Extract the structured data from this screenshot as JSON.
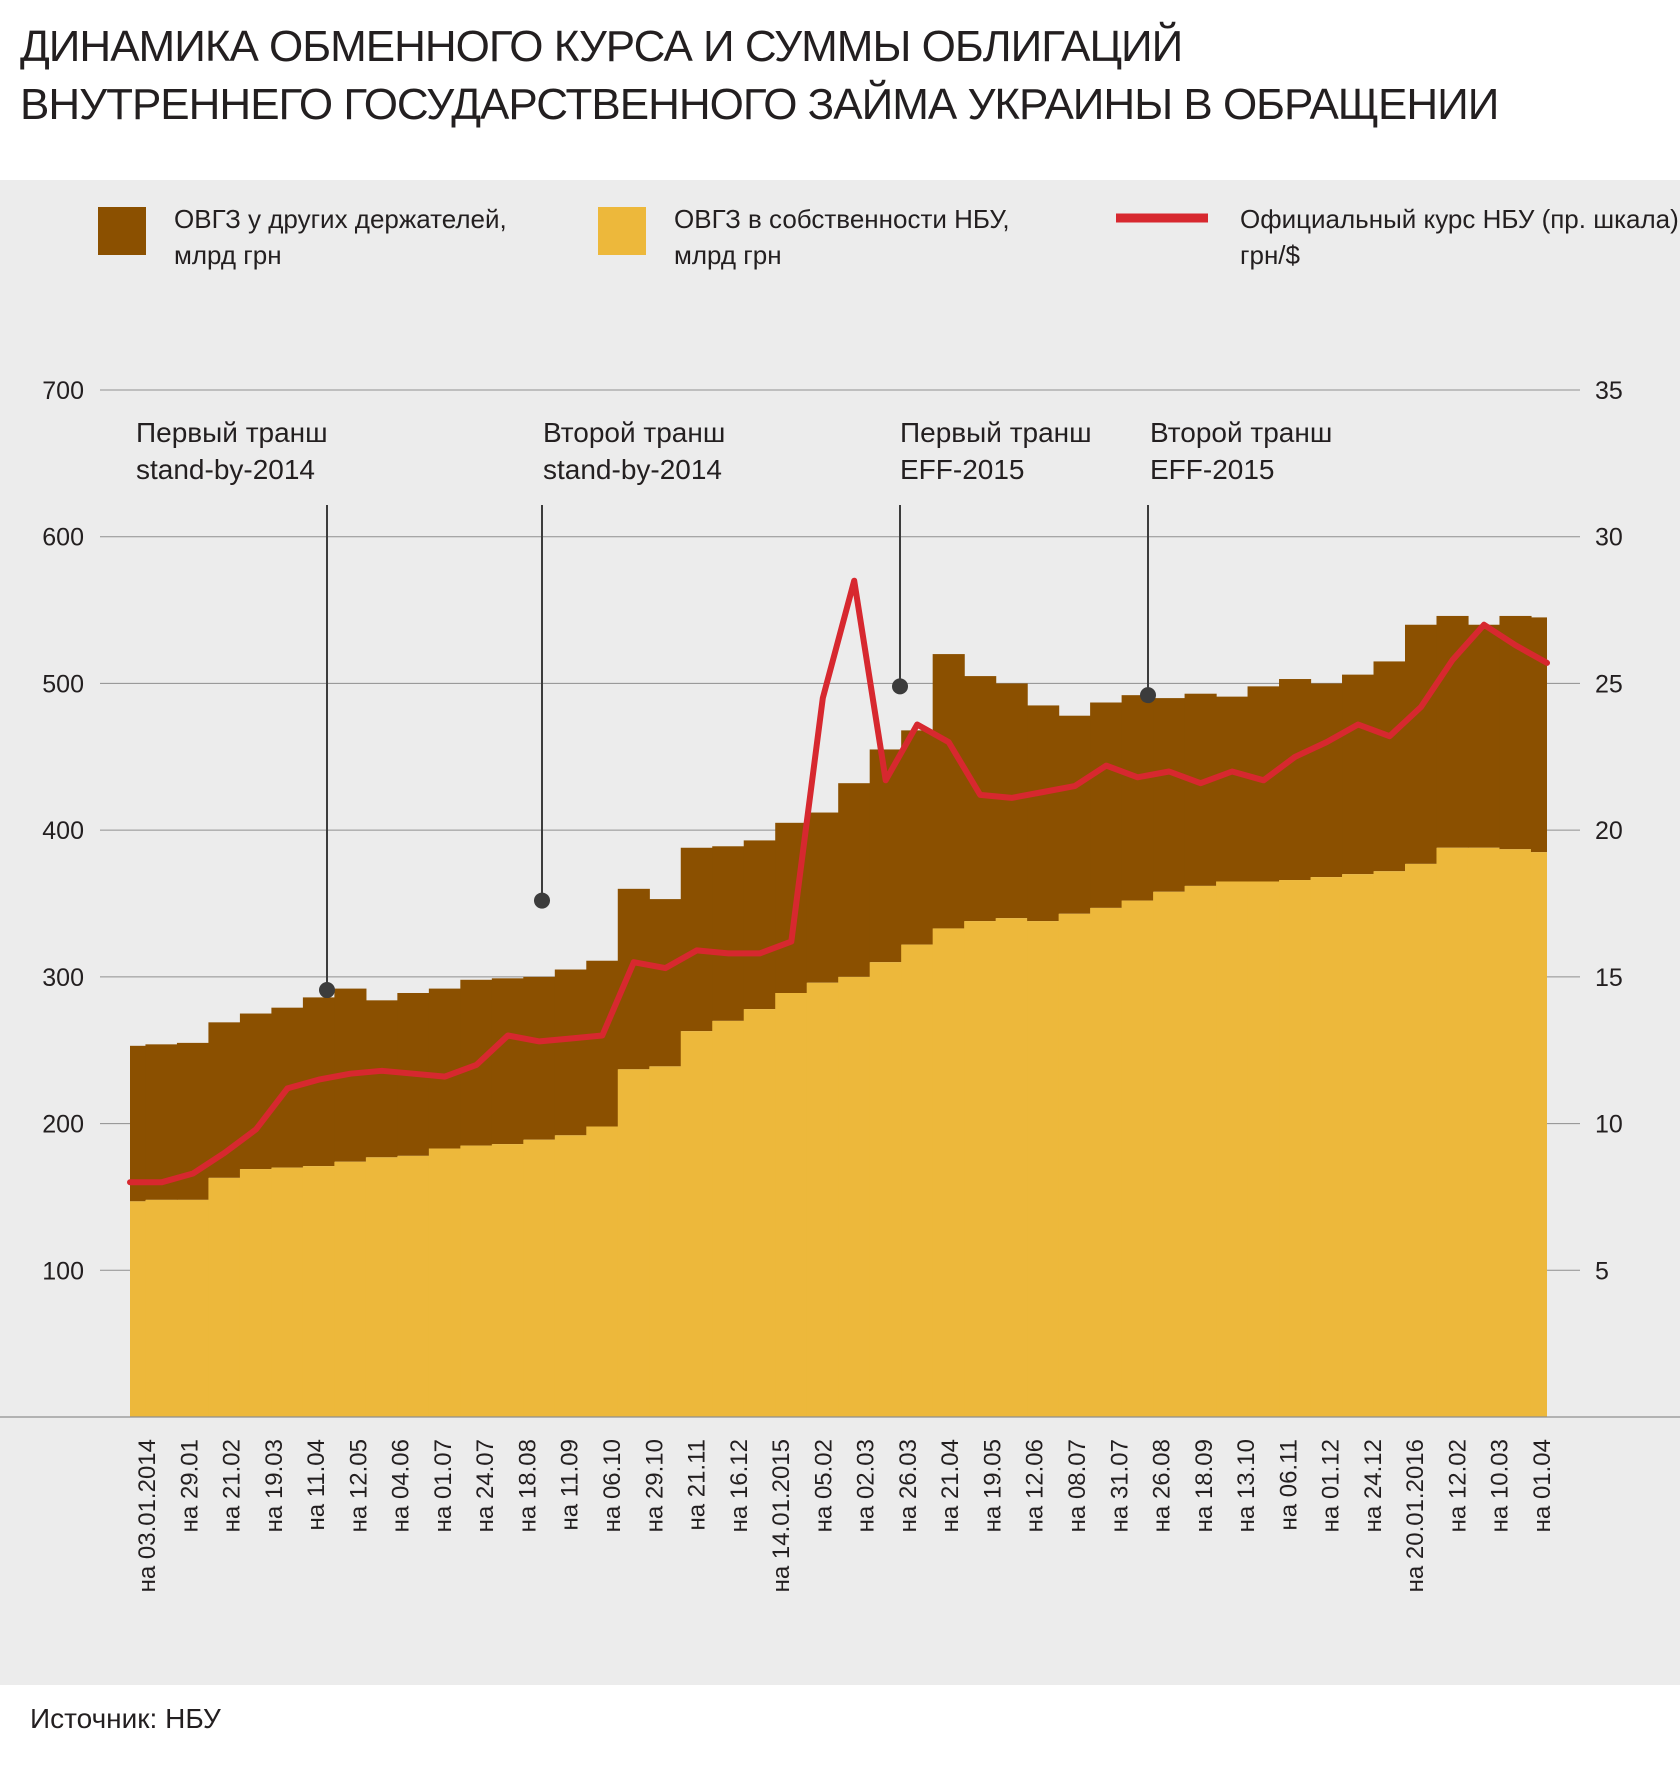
{
  "title_lines": [
    "ДИНАМИКА ОБМЕННОГО КУРСА И СУММЫ ОБЛИГАЦИЙ",
    "ВНУТРЕННЕГО ГОСУДАРСТВЕННОГО ЗАЙМА УКРАИНЫ В ОБРАЩЕНИИ"
  ],
  "source": "Источник: НБУ",
  "colors": {
    "other_holders": "#8b5000",
    "nbu_owned": "#edb83b",
    "rate_line": "#d7282f",
    "panel_bg": "#ececec",
    "marker": "#3c3c3c"
  },
  "chart_data": {
    "type": "area",
    "legend_position": "top",
    "grid": true,
    "left_axis": {
      "min": 0,
      "max": 700,
      "ticks": [
        100,
        200,
        300,
        400,
        500,
        600,
        700
      ]
    },
    "right_axis": {
      "min": 0,
      "max": 35,
      "ticks": [
        5,
        10,
        15,
        20,
        25,
        30,
        35
      ]
    },
    "x_tick_labels": [
      "на 03.01.2014",
      "на 29.01",
      "на 21.02",
      "на 19.03",
      "на 11.04",
      "на 12.05",
      "на 04.06",
      "на 01.07",
      "на 24.07",
      "на 18.08",
      "на 11.09",
      "на 06.10",
      "на 29.10",
      "на 21.11",
      "на 16.12",
      "на 14.01.2015",
      "на 05.02",
      "на 02.03",
      "на 26.03",
      "на 21.04",
      "на 19.05",
      "на 12.06",
      "на 08.07",
      "на 31.07",
      "на 26.08",
      "на 18.09",
      "на 13.10",
      "на 06.11",
      "на 01.12",
      "на 24.12",
      "на 20.01.2016",
      "на 12.02",
      "на 10.03",
      "на 01.04"
    ],
    "series": [
      {
        "name": "ОВГЗ у других держателей, млрд грн",
        "axis": "left",
        "kind": "stacked-area-top",
        "values": [
          253,
          254,
          255,
          269,
          275,
          279,
          286,
          292,
          284,
          289,
          292,
          298,
          299,
          300,
          305,
          311,
          360,
          353,
          388,
          389,
          393,
          405,
          412,
          432,
          455,
          468,
          520,
          505,
          500,
          485,
          478,
          487,
          492,
          490,
          493,
          491,
          498,
          503,
          500,
          506,
          515,
          540,
          546,
          540,
          546,
          545
        ]
      },
      {
        "name": "ОВГЗ в собственности НБУ, млрд грн",
        "axis": "left",
        "kind": "stacked-area-bottom",
        "values": [
          147,
          148,
          148,
          163,
          169,
          170,
          171,
          174,
          177,
          178,
          183,
          185,
          186,
          189,
          192,
          198,
          237,
          239,
          263,
          270,
          278,
          289,
          296,
          300,
          310,
          322,
          333,
          338,
          340,
          338,
          343,
          347,
          352,
          358,
          362,
          365,
          365,
          366,
          368,
          370,
          372,
          377,
          388,
          388,
          387,
          385
        ]
      },
      {
        "name": "Официальный курс НБУ (пр. шкала), грн/$",
        "axis": "right",
        "kind": "line",
        "values": [
          8.0,
          8.0,
          8.3,
          9.0,
          9.8,
          11.2,
          11.5,
          11.7,
          11.8,
          11.7,
          11.6,
          12.0,
          13.0,
          12.8,
          12.9,
          13.0,
          15.5,
          15.3,
          15.9,
          15.8,
          15.8,
          16.2,
          24.5,
          28.5,
          21.7,
          23.6,
          23.0,
          21.2,
          21.1,
          21.3,
          21.5,
          22.2,
          21.8,
          22.0,
          21.6,
          22.0,
          21.7,
          22.5,
          23.0,
          23.6,
          23.2,
          24.2,
          25.8,
          27.0,
          26.3,
          25.7
        ]
      }
    ],
    "annotations": [
      {
        "label_lines": [
          "Первый транш",
          "stand-by-2014"
        ],
        "y_value": 291
      },
      {
        "label_lines": [
          "Второй транш",
          "stand-by-2014"
        ],
        "y_value": 352
      },
      {
        "label_lines": [
          "Первый транш",
          "EFF-2015"
        ],
        "y_value": 498
      },
      {
        "label_lines": [
          "Второй транш",
          "EFF-2015"
        ],
        "y_value": 492
      }
    ]
  }
}
